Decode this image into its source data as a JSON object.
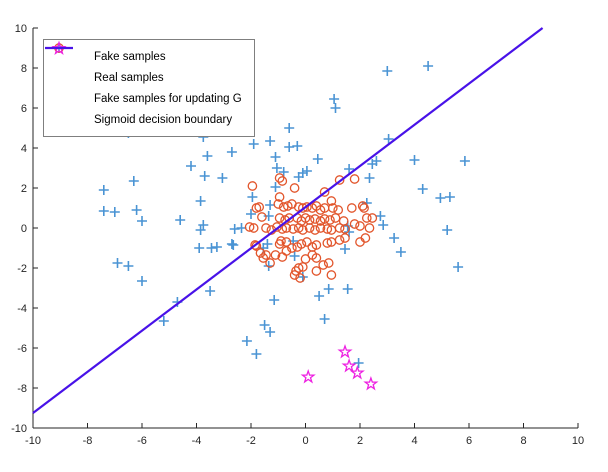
{
  "figure": {
    "background_color": "#ffffff",
    "axis_color": "#262626",
    "legend_border_color": "#7f7f7f"
  },
  "chart_data": {
    "type": "scatter",
    "title": "",
    "xlabel": "",
    "ylabel": "",
    "xlim": [
      -10,
      10
    ],
    "ylim": [
      -10,
      10
    ],
    "xticks": [
      -10,
      -8,
      -6,
      -4,
      -2,
      0,
      2,
      4,
      6,
      8,
      10
    ],
    "yticks": [
      -10,
      -8,
      -6,
      -4,
      -2,
      0,
      2,
      4,
      6,
      8,
      10
    ],
    "grid": false,
    "legend_position": "top-left",
    "series": [
      {
        "name": "Fake samples",
        "marker": "plus",
        "color": "#4A94D4",
        "points": [
          [
            -6.8,
            5.0
          ],
          [
            -6.5,
            4.75
          ],
          [
            -3.6,
            5.65
          ],
          [
            -3.85,
            5.0
          ],
          [
            -3.45,
            5.1
          ],
          [
            -3.75,
            4.55
          ],
          [
            -1.9,
            4.2
          ],
          [
            -1.3,
            4.35
          ],
          [
            -0.6,
            5.0
          ],
          [
            -0.6,
            4.05
          ],
          [
            -0.3,
            4.1
          ],
          [
            -4.2,
            3.1
          ],
          [
            -3.6,
            3.6
          ],
          [
            -2.7,
            3.8
          ],
          [
            -3.7,
            2.6
          ],
          [
            -3.05,
            2.5
          ],
          [
            -6.3,
            2.35
          ],
          [
            -7.4,
            1.9
          ],
          [
            -7.4,
            0.85
          ],
          [
            -7.0,
            0.8
          ],
          [
            -6.2,
            0.9
          ],
          [
            -6.0,
            0.35
          ],
          [
            -4.6,
            0.4
          ],
          [
            -3.85,
            1.35
          ],
          [
            -3.75,
            0.15
          ],
          [
            -1.1,
            3.55
          ],
          [
            -1.05,
            3.0
          ],
          [
            -0.8,
            2.8
          ],
          [
            -1.1,
            2.05
          ],
          [
            -1.95,
            1.55
          ],
          [
            -1.3,
            1.15
          ],
          [
            -2.0,
            0.7
          ],
          [
            -1.35,
            0.6
          ],
          [
            -0.25,
            2.55
          ],
          [
            -0.1,
            2.75
          ],
          [
            0.05,
            2.85
          ],
          [
            1.05,
            6.45
          ],
          [
            1.1,
            6.0
          ],
          [
            3.0,
            7.85
          ],
          [
            4.5,
            8.1
          ],
          [
            1.6,
            2.95
          ],
          [
            2.45,
            3.2
          ],
          [
            2.6,
            3.35
          ],
          [
            2.35,
            2.5
          ],
          [
            0.45,
            3.45
          ],
          [
            3.05,
            4.45
          ],
          [
            4.0,
            3.4
          ],
          [
            5.85,
            3.35
          ],
          [
            4.3,
            1.95
          ],
          [
            4.95,
            1.5
          ],
          [
            5.3,
            1.55
          ],
          [
            2.25,
            1.25
          ],
          [
            2.75,
            0.6
          ],
          [
            2.85,
            0.15
          ],
          [
            1.55,
            0.1
          ],
          [
            -2.35,
            0.0
          ],
          [
            -2.6,
            -0.05
          ],
          [
            -3.85,
            -0.1
          ],
          [
            -6.9,
            -1.75
          ],
          [
            -6.5,
            -1.9
          ],
          [
            -6.0,
            -2.65
          ],
          [
            -3.9,
            -1.0
          ],
          [
            -3.45,
            -1.0
          ],
          [
            -3.25,
            -0.95
          ],
          [
            -2.7,
            -0.8
          ],
          [
            -4.7,
            -3.7
          ],
          [
            -3.5,
            -3.15
          ],
          [
            -5.2,
            -4.65
          ],
          [
            -2.65,
            -0.85
          ],
          [
            -1.55,
            -1.0
          ],
          [
            -1.4,
            -0.8
          ],
          [
            -0.45,
            -0.65
          ],
          [
            -0.4,
            -1.4
          ],
          [
            -1.35,
            -1.9
          ],
          [
            -0.1,
            -2.45
          ],
          [
            1.6,
            -0.2
          ],
          [
            1.45,
            -1.05
          ],
          [
            3.25,
            -0.5
          ],
          [
            3.5,
            -1.2
          ],
          [
            5.2,
            -0.1
          ],
          [
            5.6,
            -1.95
          ],
          [
            -1.15,
            -3.6
          ],
          [
            -1.5,
            -4.85
          ],
          [
            -1.3,
            -5.2
          ],
          [
            -2.15,
            -5.65
          ],
          [
            -1.8,
            -6.3
          ],
          [
            0.5,
            -3.4
          ],
          [
            0.85,
            -3.05
          ],
          [
            1.55,
            -3.05
          ],
          [
            0.7,
            -4.55
          ],
          [
            1.95,
            -6.75
          ]
        ]
      },
      {
        "name": "Real samples",
        "marker": "circle",
        "color": "#E2552B",
        "points": [
          [
            -1.95,
            2.1
          ],
          [
            -0.95,
            2.5
          ],
          [
            -0.85,
            2.35
          ],
          [
            -0.4,
            2.0
          ],
          [
            0.7,
            1.8
          ],
          [
            1.25,
            2.4
          ],
          [
            1.8,
            2.45
          ],
          [
            2.15,
            1.0
          ],
          [
            0.95,
            1.35
          ],
          [
            -0.95,
            1.55
          ],
          [
            -1.0,
            1.2
          ],
          [
            -1.7,
            1.05
          ],
          [
            -1.8,
            1.0
          ],
          [
            -1.6,
            0.55
          ],
          [
            -0.8,
            1.05
          ],
          [
            -0.65,
            1.1
          ],
          [
            -0.5,
            1.2
          ],
          [
            -0.25,
            1.05
          ],
          [
            -0.1,
            1.0
          ],
          [
            0.05,
            1.05
          ],
          [
            0.25,
            1.0
          ],
          [
            0.4,
            1.1
          ],
          [
            0.55,
            0.9
          ],
          [
            0.7,
            1.0
          ],
          [
            1.0,
            1.0
          ],
          [
            1.2,
            0.9
          ],
          [
            1.7,
            1.0
          ],
          [
            2.1,
            1.1
          ],
          [
            2.25,
            0.5
          ],
          [
            2.45,
            0.5
          ],
          [
            -0.95,
            0.5
          ],
          [
            -0.75,
            0.4
          ],
          [
            -0.6,
            0.5
          ],
          [
            -0.3,
            0.5
          ],
          [
            -0.15,
            0.35
          ],
          [
            0.0,
            0.5
          ],
          [
            0.15,
            0.4
          ],
          [
            0.35,
            0.45
          ],
          [
            0.55,
            0.35
          ],
          [
            0.7,
            0.45
          ],
          [
            0.9,
            0.4
          ],
          [
            1.1,
            0.5
          ],
          [
            1.4,
            0.35
          ],
          [
            -2.05,
            0.05
          ],
          [
            -1.9,
            0.0
          ],
          [
            -1.45,
            0.0
          ],
          [
            -1.25,
            -0.1
          ],
          [
            -1.05,
            0.05
          ],
          [
            -0.85,
            -0.05
          ],
          [
            -0.7,
            0.0
          ],
          [
            -0.45,
            -0.05
          ],
          [
            -0.25,
            0.0
          ],
          [
            -0.1,
            -0.1
          ],
          [
            0.15,
            0.0
          ],
          [
            0.35,
            -0.1
          ],
          [
            0.55,
            0.0
          ],
          [
            0.8,
            -0.05
          ],
          [
            0.95,
            -0.1
          ],
          [
            1.25,
            0.0
          ],
          [
            1.45,
            -0.05
          ],
          [
            1.8,
            0.2
          ],
          [
            2.0,
            0.1
          ],
          [
            2.35,
            0.0
          ],
          [
            -1.85,
            -0.85
          ],
          [
            -1.65,
            -1.25
          ],
          [
            -1.45,
            -1.35
          ],
          [
            -1.3,
            -1.75
          ],
          [
            -1.1,
            -1.35
          ],
          [
            -0.85,
            -1.45
          ],
          [
            -0.95,
            -0.8
          ],
          [
            -0.7,
            -0.7
          ],
          [
            -0.5,
            -1.0
          ],
          [
            -0.3,
            -0.95
          ],
          [
            -0.15,
            -0.8
          ],
          [
            0.05,
            -0.7
          ],
          [
            0.25,
            -0.95
          ],
          [
            0.4,
            -0.85
          ],
          [
            0.25,
            -1.35
          ],
          [
            0.4,
            -1.5
          ],
          [
            0.0,
            -1.55
          ],
          [
            0.8,
            -0.75
          ],
          [
            0.95,
            -0.7
          ],
          [
            1.25,
            -0.6
          ],
          [
            1.45,
            -0.5
          ],
          [
            2.0,
            -0.7
          ],
          [
            2.2,
            -0.5
          ],
          [
            0.65,
            -1.85
          ],
          [
            0.85,
            -1.75
          ],
          [
            -0.25,
            -2.0
          ],
          [
            -0.1,
            -1.95
          ],
          [
            -0.4,
            -2.35
          ],
          [
            -0.2,
            -2.5
          ],
          [
            0.95,
            -2.35
          ],
          [
            0.4,
            -2.15
          ],
          [
            -1.8,
            -0.9
          ],
          [
            -1.55,
            -1.5
          ],
          [
            -0.9,
            -0.65
          ],
          [
            -0.7,
            -1.15
          ],
          [
            -0.35,
            -2.15
          ]
        ]
      },
      {
        "name": "Fake samples for updating G",
        "marker": "star",
        "color": "#EE22E2",
        "points": [
          [
            0.1,
            -7.45
          ],
          [
            1.45,
            -6.2
          ],
          [
            1.6,
            -6.9
          ],
          [
            1.9,
            -7.25
          ],
          [
            2.4,
            -7.8
          ]
        ]
      },
      {
        "name": "Sigmoid decision boundary",
        "marker": "line",
        "color": "#4812E8",
        "points": [
          [
            -10,
            -9.25
          ],
          [
            8.7,
            10
          ]
        ]
      }
    ]
  }
}
